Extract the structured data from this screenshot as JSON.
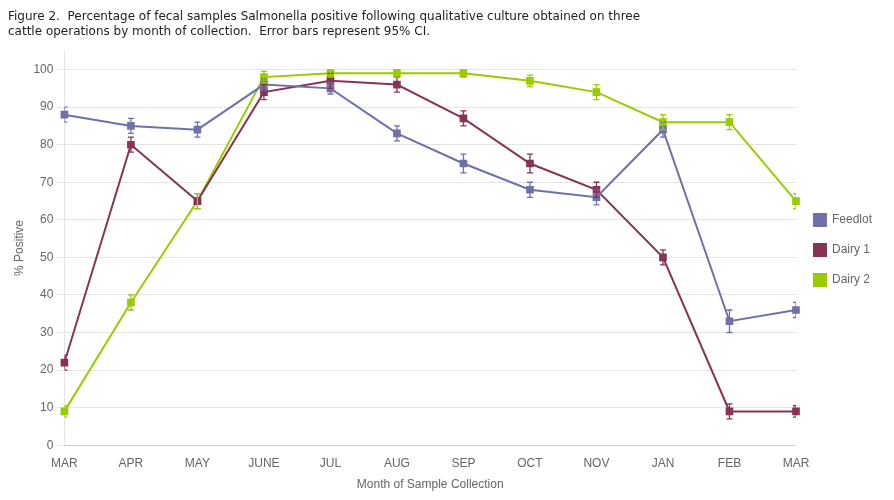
{
  "chart_data": {
    "type": "line",
    "title": [
      "Figure 2.  Percentage of fecal samples Salmonella positive following qualitative culture obtained on three",
      "cattle operations by month of collection.  Error bars represent 95% CI."
    ],
    "xlabel": "Month of Sample Collection",
    "ylabel": "% Positive",
    "categories": [
      "MAR",
      "APR",
      "MAY",
      "JUNE",
      "JUL",
      "AUG",
      "SEP",
      "OCT",
      "NOV",
      "JAN",
      "FEB",
      "MAR"
    ],
    "series": [
      {
        "name": "Feedlot",
        "color": "#7070aa",
        "marker": "square",
        "line_style": "solid",
        "values": [
          88,
          85,
          84,
          96,
          95,
          83,
          75,
          68,
          66,
          84,
          33,
          36
        ],
        "errors": [
          2,
          2,
          2,
          1.5,
          1.5,
          2,
          2.5,
          2,
          2,
          2,
          3,
          2
        ]
      },
      {
        "name": "Dairy 1",
        "color": "#883355",
        "marker": "square",
        "line_style": "solid",
        "values": [
          22,
          80,
          65,
          94,
          97,
          96,
          87,
          75,
          68,
          50,
          9,
          9
        ],
        "errors": [
          2,
          2,
          2,
          2,
          2,
          2,
          2,
          2.5,
          2,
          2,
          2,
          1.5
        ]
      },
      {
        "name": "Dairy 2",
        "color": "#99cc00",
        "marker": "square",
        "line_style": "solid",
        "values": [
          9,
          38,
          65,
          98,
          99,
          99,
          99,
          97,
          94,
          86,
          86,
          65
        ],
        "errors": [
          1.5,
          2,
          2,
          1.5,
          1,
          1,
          1,
          1.5,
          2,
          2,
          2,
          2
        ]
      }
    ],
    "ylim": [
      0,
      105
    ],
    "yticks": [
      0,
      10,
      20,
      30,
      40,
      50,
      60,
      70,
      80,
      90,
      100
    ],
    "grid": true,
    "legend": "right"
  }
}
